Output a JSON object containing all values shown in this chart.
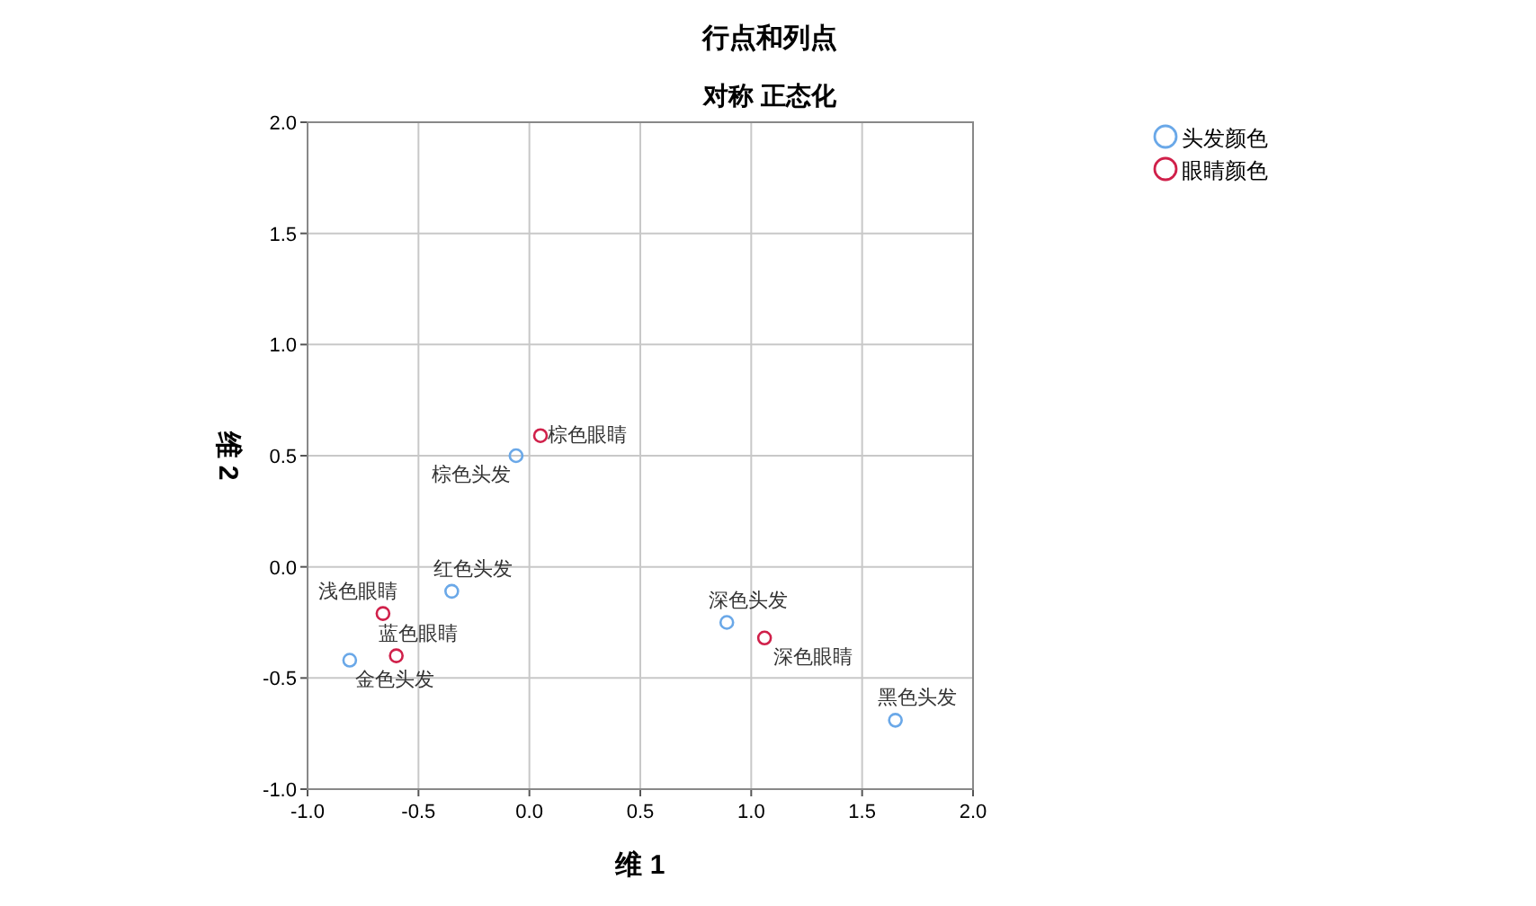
{
  "chart_data": {
    "type": "scatter",
    "title": "行点和列点",
    "subtitle": "对称 正态化",
    "xlabel": "维 1",
    "ylabel": "维 2",
    "xlim": [
      -1,
      2
    ],
    "ylim": [
      -1,
      2
    ],
    "xticks": [
      {
        "value": -1,
        "label": "-1.0"
      },
      {
        "value": -0.5,
        "label": "-0.5"
      },
      {
        "value": 0,
        "label": "0.0"
      },
      {
        "value": 0.5,
        "label": "0.5"
      },
      {
        "value": 1,
        "label": "1.0"
      },
      {
        "value": 1.5,
        "label": "1.5"
      },
      {
        "value": 2,
        "label": "2.0"
      }
    ],
    "yticks": [
      {
        "value": -1,
        "label": "-1.0"
      },
      {
        "value": -0.5,
        "label": "-0.5"
      },
      {
        "value": 0,
        "label": "0.0"
      },
      {
        "value": 0.5,
        "label": "0.5"
      },
      {
        "value": 1,
        "label": "1.0"
      },
      {
        "value": 1.5,
        "label": "1.5"
      },
      {
        "value": 2,
        "label": "2.0"
      }
    ],
    "grid": true,
    "legend": "top right",
    "marker": "circle",
    "series": [
      {
        "name": "头发颜色",
        "color": "#6aa8e8",
        "x": [
          -0.06,
          -0.35,
          -0.81,
          0.89,
          1.65
        ],
        "values": [
          0.5,
          -0.11,
          -0.42,
          -0.25,
          -0.69
        ]
      },
      {
        "name": "眼睛颜色",
        "color": "#d0204a",
        "x": [
          0.05,
          -0.66,
          -0.6,
          1.06
        ],
        "values": [
          0.59,
          -0.21,
          -0.4,
          -0.32
        ]
      }
    ],
    "annotations": [
      {
        "text": "棕色头发",
        "x": -0.06,
        "y": 0.5
      },
      {
        "text": "红色头发",
        "x": -0.35,
        "y": -0.11
      },
      {
        "text": "金色头发",
        "x": -0.81,
        "y": -0.42
      },
      {
        "text": "深色头发",
        "x": 0.89,
        "y": -0.25
      },
      {
        "text": "黑色头发",
        "x": 1.65,
        "y": -0.69
      },
      {
        "text": "棕色眼睛",
        "x": 0.05,
        "y": 0.59
      },
      {
        "text": "浅色眼睛",
        "x": -0.66,
        "y": -0.21
      },
      {
        "text": "蓝色眼睛",
        "x": -0.6,
        "y": -0.4
      },
      {
        "text": "深色眼睛",
        "x": 1.06,
        "y": -0.32
      }
    ]
  }
}
